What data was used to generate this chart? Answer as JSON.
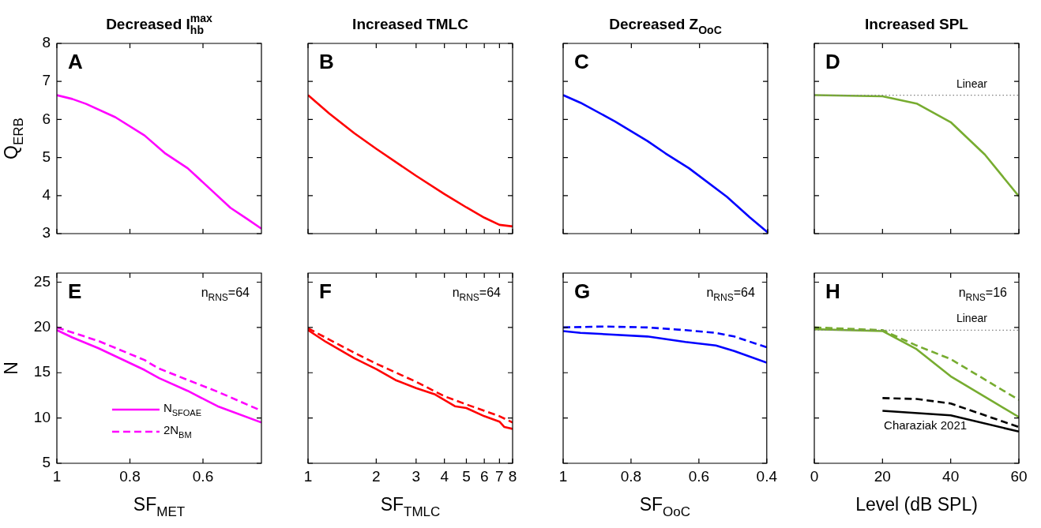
{
  "chart_data": [
    {
      "type": "line",
      "title": "Decreased I$^{max}$$_{hb}$",
      "ylabel": "Q$_{ERB}$",
      "xlim": [
        1,
        0.44
      ],
      "xticks": [
        1,
        0.8,
        0.6
      ],
      "ylim": [
        3,
        8
      ],
      "yticks": [
        3,
        4,
        5,
        6,
        7,
        8
      ],
      "tick_labels": "y",
      "marker": "none",
      "annotations": [
        "A"
      ],
      "series": [
        {
          "color": "#ff00ff",
          "line_style": "solid",
          "x": [
            1,
            0.958,
            0.92,
            0.84,
            0.76,
            0.705,
            0.642,
            0.58,
            0.525,
            0.48,
            0.44
          ],
          "values": [
            6.64,
            6.54,
            6.41,
            6.06,
            5.58,
            5.12,
            4.72,
            4.17,
            3.68,
            3.39,
            3.13
          ]
        }
      ]
    },
    {
      "type": "line",
      "title": "Increased TMLC",
      "log": "x",
      "xlim": [
        1,
        8
      ],
      "xticks": [
        1,
        2,
        3,
        4,
        5,
        6,
        7,
        8
      ],
      "ylim": [
        3,
        8
      ],
      "yticks": [
        3,
        4,
        5,
        6,
        7,
        8
      ],
      "tick_labels": false,
      "marker": "none",
      "annotations": [
        "B"
      ],
      "series": [
        {
          "color": "#ff0000",
          "line_style": "solid",
          "x": [
            1,
            1.24,
            1.6,
            2,
            3,
            4,
            5,
            6,
            7,
            8
          ],
          "values": [
            6.64,
            6.16,
            5.64,
            5.23,
            4.52,
            4.04,
            3.69,
            3.42,
            3.23,
            3.19
          ]
        }
      ]
    },
    {
      "type": "line",
      "title": "Decreased Z$_{OoC}$",
      "xlim": [
        1,
        0.4
      ],
      "xticks": [
        1,
        0.8,
        0.6,
        0.4
      ],
      "ylim": [
        3,
        8
      ],
      "yticks": [
        3,
        4,
        5,
        6,
        7,
        8
      ],
      "tick_labels": false,
      "marker": "none",
      "annotations": [
        "C"
      ],
      "series": [
        {
          "color": "#0000ff",
          "line_style": "solid",
          "x": [
            1,
            0.949,
            0.848,
            0.752,
            0.7,
            0.631,
            0.52,
            0.453,
            0.4
          ],
          "values": [
            6.64,
            6.44,
            5.95,
            5.43,
            5.11,
            4.72,
            3.97,
            3.43,
            3.03
          ]
        }
      ]
    },
    {
      "type": "line",
      "title": "Increased SPL",
      "xlim": [
        0,
        60
      ],
      "xticks": [
        0,
        20,
        40,
        60
      ],
      "ylim": [
        3,
        8
      ],
      "yticks": [
        3,
        4,
        5,
        6,
        7,
        8
      ],
      "tick_labels": false,
      "marker": "none",
      "annotations": [
        "D"
      ],
      "ref_lines": [
        {
          "axis": "y",
          "value": 6.64,
          "label": "Linear",
          "color": "#808080",
          "line_style": "dotted"
        }
      ],
      "series": [
        {
          "color": "#77ac30",
          "line_style": "solid",
          "x": [
            0,
            20,
            30,
            40,
            50,
            60
          ],
          "values": [
            6.64,
            6.61,
            6.42,
            5.93,
            5.08,
            3.98
          ]
        }
      ]
    },
    {
      "type": "line",
      "xlabel": "SF$_{MET}$",
      "ylabel": "N",
      "xlim": [
        1,
        0.44
      ],
      "xticks": [
        1,
        0.8,
        0.6
      ],
      "ylim": [
        5,
        26
      ],
      "yticks": [
        5,
        10,
        15,
        20,
        25
      ],
      "marker": "none",
      "legend": "bottom left",
      "annotations": [
        "E",
        "n$_{RNS}$=64"
      ],
      "series": [
        {
          "name": "N$_{SFOAE}$",
          "color": "#ff00ff",
          "line_style": "solid",
          "x": [
            1,
            0.958,
            0.886,
            0.76,
            0.72,
            0.642,
            0.56,
            0.44
          ],
          "values": [
            19.7,
            18.9,
            17.7,
            15.3,
            14.4,
            13.0,
            11.3,
            9.5
          ]
        },
        {
          "name": "2N$_{BM}$",
          "color": "#ff00ff",
          "line_style": "dashed",
          "x": [
            1,
            0.886,
            0.76,
            0.723,
            0.642,
            0.56,
            0.44
          ],
          "values": [
            20.0,
            18.5,
            16.4,
            15.5,
            14.2,
            12.9,
            10.8
          ]
        }
      ]
    },
    {
      "type": "line",
      "xlabel": "SF$_{TMLC}$",
      "log": "x",
      "xlim": [
        1,
        8
      ],
      "xticks": [
        1,
        2,
        3,
        4,
        5,
        6,
        7,
        8
      ],
      "ylim": [
        5,
        26
      ],
      "yticks": [
        5,
        10,
        15,
        20,
        25
      ],
      "tick_labels": "x",
      "marker": "none",
      "annotations": [
        "F",
        "n$_{RNS}$=64"
      ],
      "series": [
        {
          "color": "#ff0000",
          "line_style": "solid",
          "x": [
            1,
            1.2,
            1.6,
            2,
            2.43,
            3,
            3.64,
            4.45,
            5,
            6,
            7,
            7.36,
            8
          ],
          "values": [
            19.7,
            18.4,
            16.6,
            15.4,
            14.2,
            13.3,
            12.6,
            11.3,
            11.1,
            10.2,
            9.6,
            9.0,
            8.8
          ]
        },
        {
          "color": "#ff0000",
          "line_style": "dashed",
          "x": [
            1,
            1.6,
            2,
            3,
            4,
            5,
            6,
            7,
            8
          ],
          "values": [
            19.9,
            17.2,
            16.0,
            14.0,
            12.4,
            11.5,
            10.8,
            10.2,
            9.5
          ]
        }
      ]
    },
    {
      "type": "line",
      "xlabel": "SF$_{OoC}$",
      "xlim": [
        1,
        0.4
      ],
      "xticks": [
        1,
        0.8,
        0.6,
        0.4
      ],
      "ylim": [
        5,
        26
      ],
      "yticks": [
        5,
        10,
        15,
        20,
        25
      ],
      "tick_labels": "x",
      "marker": "none",
      "annotations": [
        "G",
        "n$_{RNS}$=64"
      ],
      "series": [
        {
          "color": "#0000ff",
          "line_style": "solid",
          "x": [
            1,
            0.949,
            0.752,
            0.64,
            0.55,
            0.496,
            0.4
          ],
          "values": [
            19.6,
            19.4,
            19.0,
            18.4,
            18.0,
            17.4,
            16.1
          ]
        },
        {
          "color": "#0000ff",
          "line_style": "dashed",
          "x": [
            1,
            0.88,
            0.752,
            0.64,
            0.55,
            0.496,
            0.4
          ],
          "values": [
            20.0,
            20.1,
            20.0,
            19.7,
            19.4,
            19.0,
            17.8
          ]
        }
      ]
    },
    {
      "type": "line",
      "xlabel": "Level (dB SPL)",
      "xlim": [
        0,
        60
      ],
      "xticks": [
        0,
        20,
        40,
        60
      ],
      "ylim": [
        5,
        26
      ],
      "yticks": [
        5,
        10,
        15,
        20,
        25
      ],
      "tick_labels": "x",
      "marker": "none",
      "annotations": [
        "H",
        "n$_{RNS}$=16",
        "Charaziak 2021"
      ],
      "ref_lines": [
        {
          "axis": "y",
          "value": 19.7,
          "label": "Linear",
          "color": "#808080",
          "line_style": "dotted"
        }
      ],
      "series": [
        {
          "color": "#77ac30",
          "line_style": "solid",
          "x": [
            0,
            20,
            30,
            40,
            60
          ],
          "values": [
            19.8,
            19.6,
            17.6,
            14.6,
            10.1
          ]
        },
        {
          "color": "#77ac30",
          "line_style": "dashed",
          "x": [
            0,
            20,
            30,
            40,
            60
          ],
          "values": [
            20.0,
            19.7,
            18.0,
            16.5,
            12.0
          ]
        },
        {
          "color": "#000000",
          "line_style": "solid",
          "x": [
            20,
            40,
            60
          ],
          "values": [
            10.8,
            10.3,
            8.5
          ]
        },
        {
          "color": "#000000",
          "line_style": "dashed",
          "x": [
            20,
            30,
            40,
            60
          ],
          "values": [
            12.2,
            12.1,
            11.6,
            9.0
          ]
        }
      ]
    }
  ]
}
